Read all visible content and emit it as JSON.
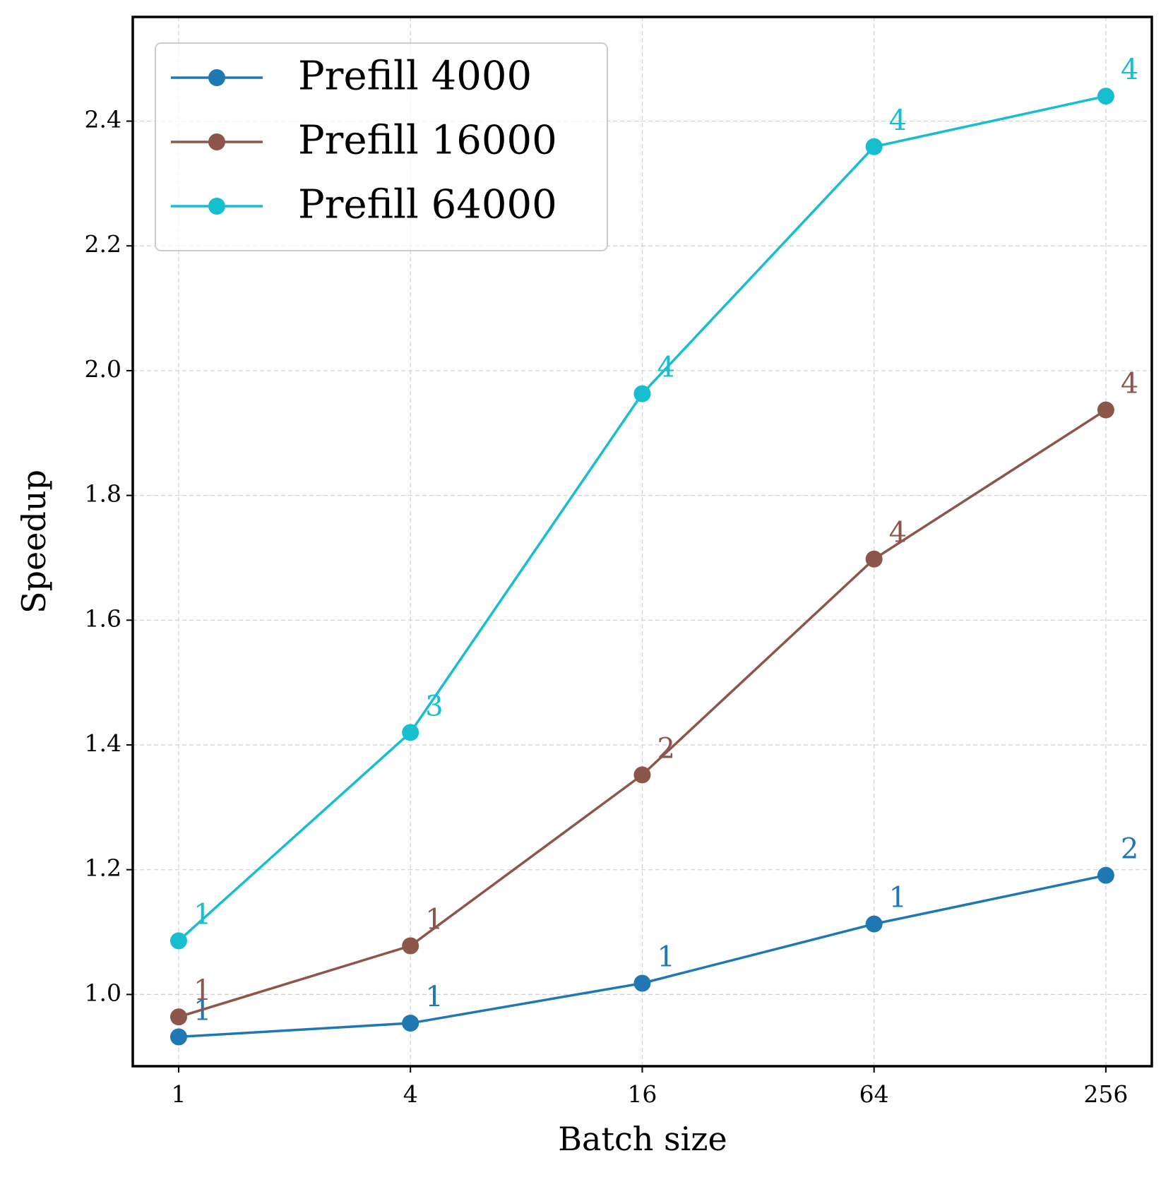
{
  "chart_data": {
    "type": "line",
    "x_label": "Batch size",
    "y_label": "Speedup",
    "x": [
      1,
      4,
      16,
      64,
      256
    ],
    "xscale": "log2",
    "xlim": [
      0.76,
      337
    ],
    "xticks": [
      1,
      4,
      16,
      64,
      256
    ],
    "ylim": [
      0.885,
      2.567
    ],
    "yticks": [
      {
        "value": 1.0,
        "label": "1.0"
      },
      1.2,
      1.4,
      1.6,
      1.8,
      {
        "value": 2.0,
        "label": "2.0"
      },
      2.2,
      2.4
    ],
    "grid": true,
    "legend": "upper left",
    "series": [
      {
        "name": "Prefill 4000",
        "color": "#1f77b4",
        "values": [
          0.932,
          0.954,
          1.018,
          1.113,
          1.191
        ],
        "point_labels": [
          1,
          1,
          1,
          1,
          2
        ]
      },
      {
        "name": "Prefill 16000",
        "color": "#8c564b",
        "values": [
          0.964,
          1.078,
          1.352,
          1.698,
          1.937
        ],
        "point_labels": [
          1,
          1,
          2,
          4,
          4
        ]
      },
      {
        "name": "Prefill 64000",
        "color": "#17becf",
        "values": [
          1.086,
          1.42,
          1.963,
          2.359,
          2.44
        ],
        "point_labels": [
          1,
          3,
          4,
          4,
          4
        ]
      }
    ]
  }
}
